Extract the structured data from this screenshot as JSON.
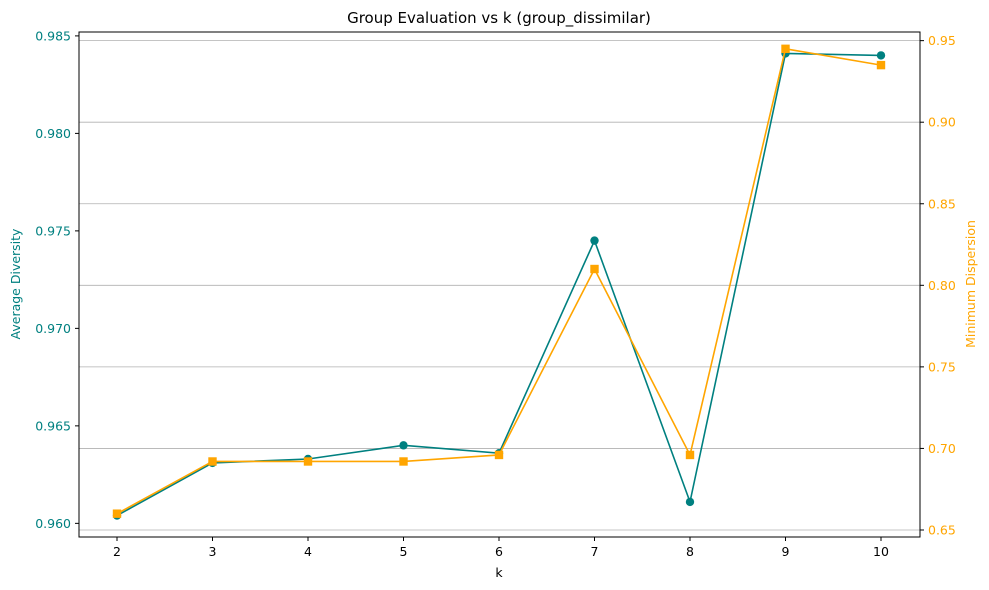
{
  "chart_data": {
    "type": "line",
    "title": "Group Evaluation vs k (group_dissimilar)",
    "xlabel": "k",
    "x": [
      2,
      3,
      4,
      5,
      6,
      7,
      8,
      9,
      10
    ],
    "xticks": [
      "2",
      "3",
      "4",
      "5",
      "6",
      "7",
      "8",
      "9",
      "10"
    ],
    "y_left": {
      "label": "Average Diversity",
      "color": "#008080",
      "ylim": [
        0.9593,
        0.9852
      ],
      "ticks": [
        0.96,
        0.965,
        0.97,
        0.975,
        0.98,
        0.985
      ],
      "tick_labels": [
        "0.960",
        "0.965",
        "0.970",
        "0.975",
        "0.980",
        "0.985"
      ]
    },
    "y_right": {
      "label": "Minimum Dispersion",
      "color": "#FFA500",
      "ylim": [
        0.6457,
        0.9553
      ],
      "ticks": [
        0.65,
        0.7,
        0.75,
        0.8,
        0.85,
        0.9,
        0.95
      ],
      "tick_labels": [
        "0.65",
        "0.70",
        "0.75",
        "0.80",
        "0.85",
        "0.90",
        "0.95"
      ]
    },
    "series": [
      {
        "axis": "left",
        "marker": "circle",
        "color": "#008080",
        "values": [
          0.9604,
          0.9631,
          0.9633,
          0.964,
          0.9636,
          0.9745,
          0.9611,
          0.9841,
          0.984
        ]
      },
      {
        "axis": "right",
        "marker": "square",
        "color": "#FFA500",
        "values": [
          0.66,
          0.692,
          0.692,
          0.692,
          0.696,
          0.81,
          0.696,
          0.945,
          0.935
        ]
      }
    ],
    "grid": "horizontal (right axis ticks)",
    "legend": "none"
  }
}
